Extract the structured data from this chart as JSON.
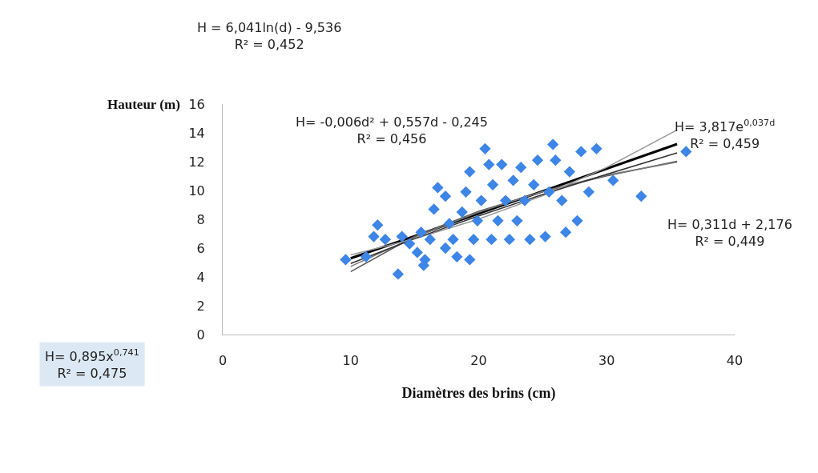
{
  "chart_data": {
    "type": "scatter",
    "xlabel": "Diamètres des brins (cm)",
    "ylabel": "Hauteur (m)",
    "xlim": [
      0,
      40
    ],
    "xticks": [
      0,
      10,
      20,
      30,
      40
    ],
    "ylim": [
      0,
      16
    ],
    "yticks": [
      0,
      2,
      4,
      6,
      8,
      10,
      12,
      14,
      16
    ],
    "legend": false,
    "marker": "diamond",
    "series": [
      {
        "color": "#3d85e6",
        "x": [
          9.6,
          12.1,
          13.7,
          12.7,
          14.0,
          14.6,
          15.2,
          15.8,
          16.2,
          16.5,
          16.8,
          17.4,
          17.7,
          18.0,
          18.3,
          18.7,
          19.0,
          19.3,
          19.6,
          19.9,
          20.2,
          20.5,
          20.8,
          21.0,
          21.1,
          21.5,
          21.8,
          22.1,
          22.4,
          22.7,
          23.0,
          23.3,
          23.6,
          24.0,
          24.3,
          24.6,
          25.2,
          25.5,
          25.8,
          26.0,
          26.5,
          26.8,
          27.1,
          27.7,
          28.0,
          28.6,
          29.2,
          30.5,
          32.7,
          36.2,
          11.8,
          11.2,
          15.5,
          17.4,
          19.3,
          15.7
        ],
        "values": [
          5.2,
          7.6,
          4.2,
          6.6,
          6.8,
          6.3,
          5.7,
          5.2,
          6.6,
          8.7,
          10.2,
          9.6,
          7.7,
          6.6,
          5.4,
          8.5,
          9.9,
          11.3,
          6.6,
          7.9,
          9.3,
          12.9,
          11.8,
          6.6,
          10.4,
          7.9,
          11.8,
          9.3,
          6.6,
          10.7,
          7.9,
          11.6,
          9.3,
          6.6,
          10.4,
          12.1,
          6.8,
          9.9,
          13.2,
          12.1,
          9.3,
          7.1,
          11.3,
          7.9,
          12.7,
          9.9,
          12.9,
          10.7,
          9.6,
          12.7,
          6.8,
          5.4,
          7.1,
          6.0,
          5.2,
          4.8
        ]
      },
      {
        "type": "line",
        "marker": "none",
        "color": "#000000",
        "x": [
          10,
          15,
          20,
          25,
          30,
          35.5
        ],
        "values": [
          5.29,
          6.84,
          8.4,
          9.95,
          11.51,
          13.22
        ]
      },
      {
        "type": "line",
        "marker": "none",
        "color": "#555555",
        "x": [
          10,
          15,
          20,
          25,
          30,
          35.5
        ],
        "values": [
          4.37,
          6.82,
          8.56,
          9.91,
          11.01,
          12.03
        ]
      },
      {
        "type": "line",
        "marker": "none",
        "color": "#777777",
        "x": [
          10,
          15,
          20,
          25,
          30,
          35.5
        ],
        "values": [
          4.73,
          6.76,
          8.5,
          9.93,
          11.07,
          11.97
        ]
      },
      {
        "type": "line",
        "marker": "none",
        "color": "#999999",
        "x": [
          10,
          15,
          20,
          25,
          30,
          35.5
        ],
        "values": [
          5.53,
          6.65,
          8.01,
          9.64,
          11.6,
          14.2
        ]
      },
      {
        "type": "line",
        "marker": "none",
        "color": "#333333",
        "x": [
          10,
          15,
          20,
          25,
          30,
          35.5
        ],
        "values": [
          4.93,
          6.66,
          8.24,
          9.72,
          11.12,
          12.61
        ]
      }
    ],
    "line_style": "solid",
    "annotations": [
      "H = 6,041ln(d) - 9,536\nR² = 0,452",
      "H= -0,006d² + 0,557d - 0,245\nR² = 0,456",
      "H= 3,817e$^{0,037d}$\nR² = 0,459",
      "H= 0,311d + 2,176\nR² = 0,449",
      "H= 0,895x$^{0,741}$\nR² = 0,475"
    ]
  }
}
